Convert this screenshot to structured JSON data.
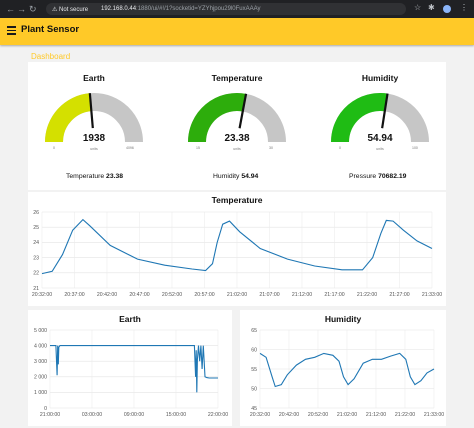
{
  "browser": {
    "security": "Not secure",
    "url_host": "192.168.0.44",
    "url_rest": ":1880/ui/#!/1?socketid=YZYhjpou29l0FuxAAAy"
  },
  "app": {
    "title": "Plant Sensor",
    "tab": "Dashboard"
  },
  "colors": {
    "header": "#ffc928",
    "line": "#1f77b4",
    "gauge_bg": "#c6c6c6"
  },
  "icons": {
    "menu": "menu-icon",
    "back": "arrow-left-icon",
    "forward": "arrow-right-icon",
    "reload": "reload-icon",
    "lock": "warning-icon",
    "star": "star-icon",
    "extensions": "puzzle-icon",
    "profile": "profile-icon",
    "more": "more-icon"
  },
  "gauges": [
    {
      "title": "Earth",
      "value": "1938",
      "units": "units",
      "min": "0",
      "max": "4096",
      "fraction": 0.473,
      "color": "#d4e000"
    },
    {
      "title": "Temperature",
      "value": "23.38",
      "units": "units",
      "min": "15",
      "max": "30",
      "fraction": 0.559,
      "color": "#2dad0c"
    },
    {
      "title": "Humidity",
      "value": "54.94",
      "units": "units",
      "min": "0",
      "max": "100",
      "fraction": 0.549,
      "color": "#1fbc14"
    }
  ],
  "stats": [
    {
      "label": "Temperature",
      "value": "23.38"
    },
    {
      "label": "Humidity",
      "value": "54.94"
    },
    {
      "label": "Pressure",
      "value": "70682.19"
    }
  ],
  "chart_data": [
    {
      "type": "line",
      "title": "Temperature",
      "ylim": [
        21,
        26
      ],
      "y_ticks": [
        "26",
        "25",
        "24",
        "23",
        "22",
        "21"
      ],
      "x_ticks": [
        "20:32:00",
        "20:37:00",
        "20:42:00",
        "20:47:00",
        "20:52:00",
        "20:57:00",
        "21:02:00",
        "21:07:00",
        "21:12:00",
        "21:17:00",
        "21:22:00",
        "21:27:00",
        "21:33:00"
      ],
      "x": [
        0,
        1.5,
        3,
        4.5,
        6,
        7,
        10,
        14,
        18,
        22,
        24,
        25,
        25.7,
        26.5,
        27.5,
        29,
        32,
        36,
        40,
        44,
        47,
        48.5,
        49.7,
        50.5,
        51.5,
        53,
        55,
        57.2
      ],
      "y": [
        21.95,
        22.1,
        23.2,
        24.8,
        25.5,
        25.1,
        23.8,
        22.9,
        22.5,
        22.25,
        22.15,
        22.6,
        24.0,
        25.2,
        25.4,
        24.7,
        23.6,
        22.9,
        22.45,
        22.2,
        22.2,
        23.0,
        24.6,
        25.45,
        25.4,
        24.8,
        24.1,
        23.6
      ]
    },
    {
      "type": "line",
      "title": "Earth",
      "ylim": [
        0,
        5000
      ],
      "y_ticks": [
        "5 000",
        "4 000",
        "3 000",
        "2 000",
        "1 000",
        "0"
      ],
      "x_ticks": [
        "21:00:00",
        "03:00:00",
        "09:00:00",
        "15:00:00",
        "22:00:00"
      ],
      "x": [
        0,
        0.5,
        1.0,
        1.2,
        1.3,
        1.4,
        1.5,
        1.7,
        2.0,
        24.5,
        24.7,
        24.8,
        24.9,
        25.0,
        25.2,
        25.4,
        25.6,
        25.8,
        26.0,
        26.3,
        26.6,
        27.0,
        28.5
      ],
      "y": [
        4000,
        4000,
        4000,
        2100,
        4000,
        2800,
        3900,
        4000,
        4000,
        4000,
        2000,
        3700,
        1000,
        3100,
        4000,
        3000,
        4000,
        2500,
        4000,
        2000,
        1950,
        1920,
        1920
      ]
    },
    {
      "type": "line",
      "title": "Humidity",
      "ylim": [
        45,
        65
      ],
      "y_ticks": [
        "65",
        "60",
        "55",
        "50",
        "45"
      ],
      "x_ticks": [
        "20:32:00",
        "20:42:00",
        "20:52:00",
        "21:02:00",
        "21:12:00",
        "21:22:00",
        "21:33:00"
      ],
      "x": [
        0,
        2,
        4,
        5,
        7,
        9,
        12,
        15,
        18,
        21,
        24,
        26,
        27.5,
        29,
        31,
        34,
        37,
        40,
        43,
        46,
        48,
        49.5,
        51,
        53,
        55,
        57.3
      ],
      "y": [
        59,
        58,
        53,
        50.5,
        51,
        53.5,
        56,
        57.5,
        58,
        59,
        58.5,
        57,
        53,
        51,
        52.5,
        56.5,
        57.5,
        57.5,
        58.3,
        59,
        57.5,
        53,
        51,
        52,
        54,
        55
      ]
    }
  ]
}
